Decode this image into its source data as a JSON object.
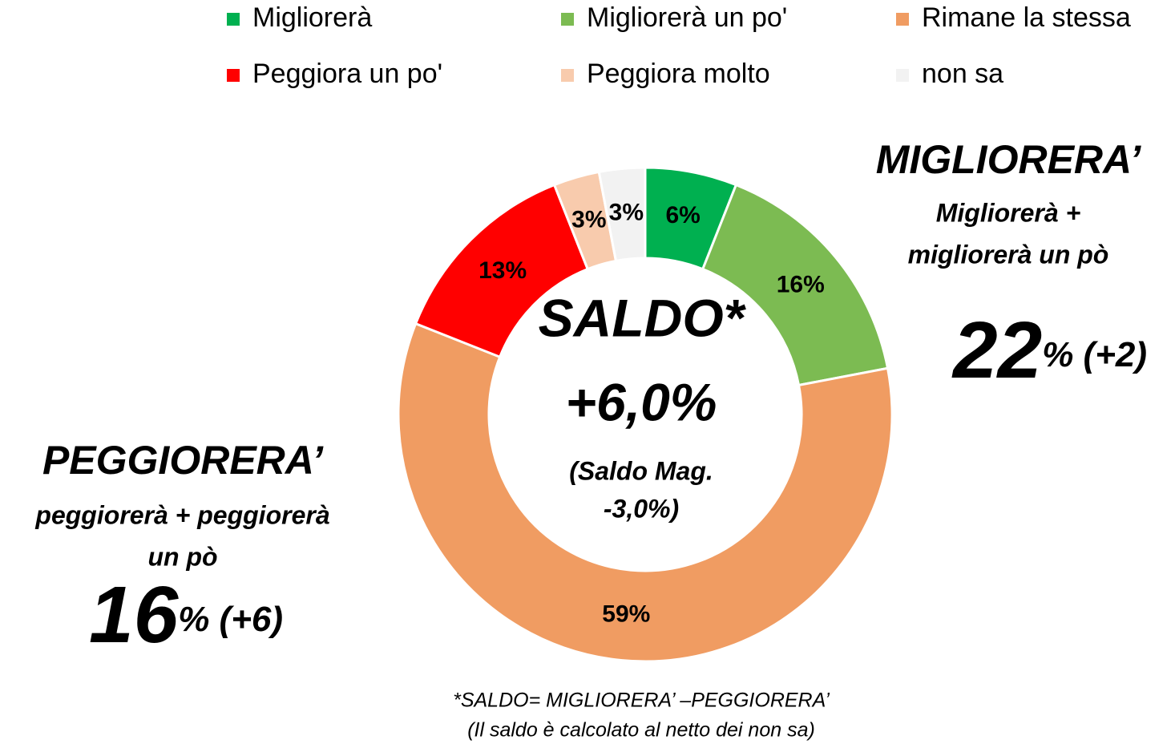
{
  "chart_data": {
    "type": "donut",
    "categories": [
      "Migliorerà",
      "Migliorerà un po'",
      "Rimane la stessa",
      "Peggiora un po'",
      "Peggiora molto",
      "non sa"
    ],
    "values": [
      6,
      16,
      59,
      13,
      3,
      3
    ],
    "value_labels": [
      "6%",
      "16%",
      "59%",
      "13%",
      "3%",
      "3%"
    ],
    "colors": [
      "#00b050",
      "#7cbb52",
      "#f09c62",
      "#ff0000",
      "#f8cbad",
      "#f2f2f2"
    ],
    "center": [
      "SALDO*",
      "+6,0%",
      "(Saldo Mag.",
      "-3,0%)"
    ],
    "right_annotation": {
      "title": "MIGLIORERA’",
      "lines": [
        "Migliorerà +",
        "migliorerà un pò"
      ],
      "big": "22",
      "small": "% (+2)"
    },
    "left_annotation": {
      "title": "PEGGIORERA’",
      "lines": [
        "peggiorerà + peggiorerà",
        "un pò"
      ],
      "big": "16",
      "small": "% (+6)"
    },
    "footnote": [
      "*SALDO= MIGLIORERA’ –PEGGIORERA’",
      "(Il saldo è calcolato al netto dei non sa)"
    ]
  }
}
